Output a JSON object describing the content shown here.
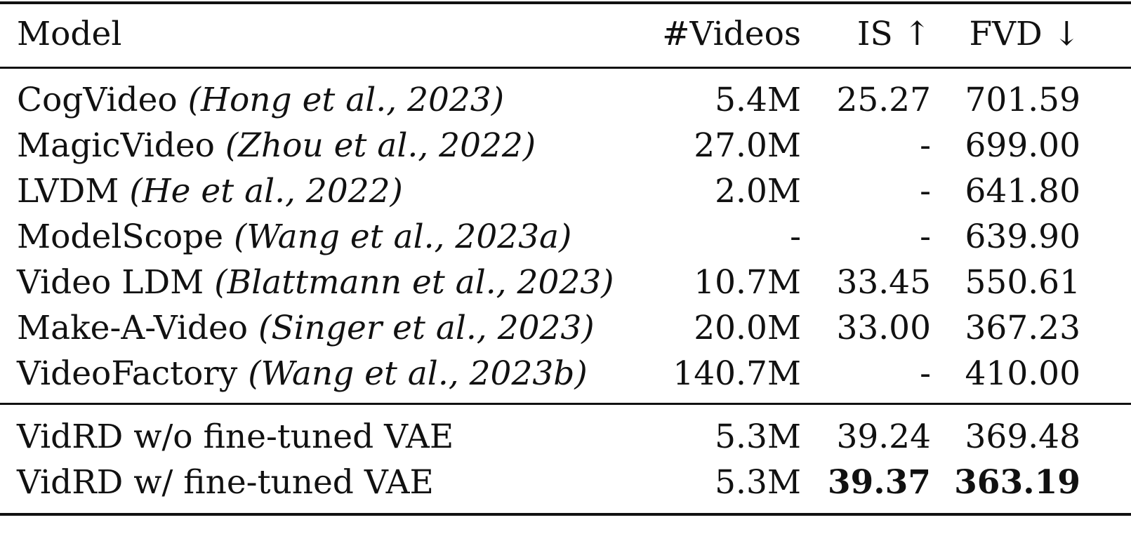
{
  "table": {
    "headers": {
      "model": "Model",
      "videos": "#Videos",
      "is": "IS ↑",
      "fvd": "FVD ↓"
    },
    "rows": [
      {
        "model": "CogVideo",
        "citation": "(Hong et al., 2023)",
        "videos": "5.4M",
        "is": "25.27",
        "fvd": "701.59"
      },
      {
        "model": "MagicVideo",
        "citation": "(Zhou et al., 2022)",
        "videos": "27.0M",
        "is": "-",
        "fvd": "699.00"
      },
      {
        "model": "LVDM",
        "citation": "(He et al., 2022)",
        "videos": "2.0M",
        "is": "-",
        "fvd": "641.80"
      },
      {
        "model": "ModelScope",
        "citation": "(Wang et al., 2023a)",
        "videos": "-",
        "is": "-",
        "fvd": "639.90"
      },
      {
        "model": "Video LDM",
        "citation": "(Blattmann et al., 2023)",
        "videos": "10.7M",
        "is": "33.45",
        "fvd": "550.61"
      },
      {
        "model": "Make-A-Video",
        "citation": "(Singer et al., 2023)",
        "videos": "20.0M",
        "is": "33.00",
        "fvd": "367.23"
      },
      {
        "model": "VideoFactory",
        "citation": "(Wang et al., 2023b)",
        "videos": "140.7M",
        "is": "-",
        "fvd": "410.00"
      }
    ],
    "ours": [
      {
        "model": "VidRD w/o fine-tuned VAE",
        "videos": "5.3M",
        "is": "39.24",
        "fvd": "369.48",
        "bold": false
      },
      {
        "model": "VidRD w/ fine-tuned VAE",
        "videos": "5.3M",
        "is": "39.37",
        "fvd": "363.19",
        "bold": true
      }
    ]
  }
}
